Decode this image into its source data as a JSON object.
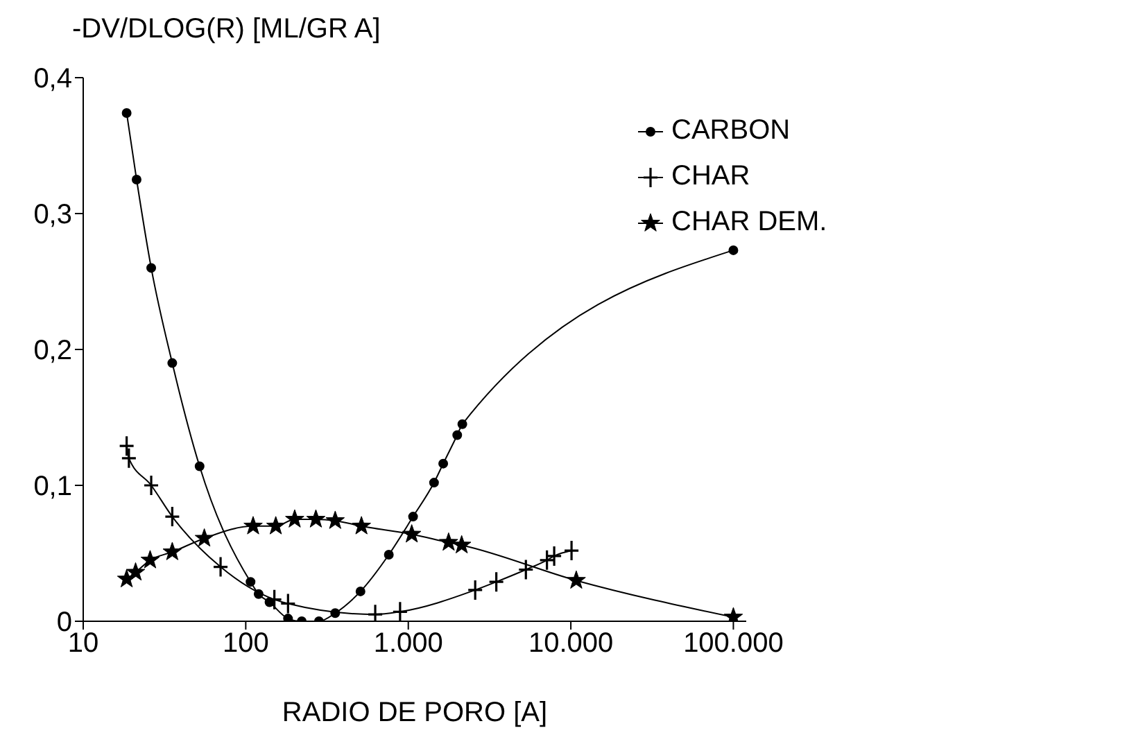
{
  "chart_data": {
    "type": "line",
    "ylabel": "-DV/DLOG(R) [ML/GR A]",
    "xlabel": "RADIO DE PORO [A]",
    "log": "x",
    "xlim": [
      10,
      120000
    ],
    "xticks": [
      10,
      100,
      {
        "value": 1000,
        "label": "1.000"
      },
      {
        "value": 10000,
        "label": "10.000"
      },
      {
        "value": 100000,
        "label": "100.000"
      }
    ],
    "ylim": [
      0,
      0.4
    ],
    "yticks": [
      0,
      {
        "value": 0.1,
        "label": "0,1"
      },
      {
        "value": 0.2,
        "label": "0,2"
      },
      {
        "value": 0.3,
        "label": "0,3"
      },
      {
        "value": 0.4,
        "label": "0,4"
      }
    ],
    "grid": false,
    "legend": "top right",
    "series": [
      {
        "name": "CARBON",
        "color": "#000000",
        "marker": "circle",
        "x": [
          18.5,
          21.3,
          26.2,
          35.3,
          52,
          107,
          120,
          140,
          182,
          221,
          282,
          355,
          508,
          759,
          1070,
          1440,
          1640,
          2000,
          2150,
          100000
        ],
        "values": [
          0.374,
          0.325,
          0.26,
          0.19,
          0.114,
          0.029,
          0.02,
          0.014,
          0.002,
          0,
          0,
          0.006,
          0.022,
          0.049,
          0.077,
          0.102,
          0.116,
          0.137,
          0.145,
          0.273
        ]
      },
      {
        "name": "CHAR",
        "color": "#000000",
        "marker": "cross",
        "x": [
          18.5,
          19.1,
          26.2,
          35.3,
          70,
          150,
          182,
          626,
          890,
          2580,
          3480,
          5290,
          7130,
          7900,
          10100
        ],
        "values": [
          0.129,
          0.12,
          0.1,
          0.077,
          0.04,
          0.016,
          0.013,
          0.005,
          0.007,
          0.023,
          0.029,
          0.038,
          0.045,
          0.048,
          0.052
        ]
      },
      {
        "name": "CHAR DEM.",
        "color": "#000000",
        "marker": "star",
        "x": [
          18.5,
          21,
          25.8,
          35.3,
          55.6,
          111,
          153,
          200,
          270,
          355,
          515,
          1050,
          1770,
          2130,
          10800,
          100000
        ],
        "values": [
          0.031,
          0.036,
          0.045,
          0.051,
          0.061,
          0.07,
          0.07,
          0.075,
          0.075,
          0.074,
          0.07,
          0.064,
          0.058,
          0.056,
          0.03,
          0.003
        ]
      }
    ]
  }
}
